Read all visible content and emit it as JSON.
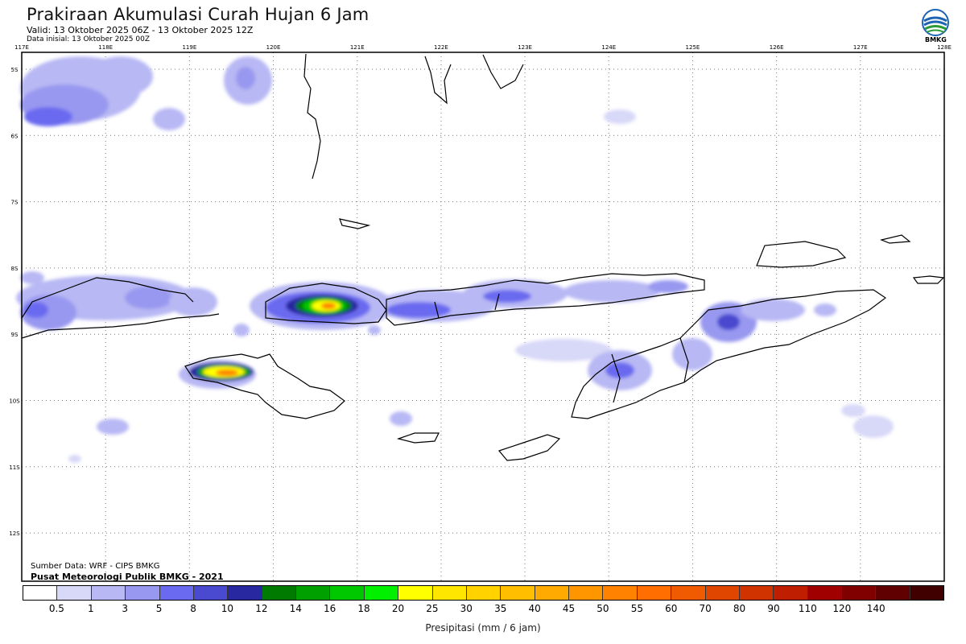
{
  "header": {
    "title": "Prakiraan Akumulasi Curah Hujan 6 Jam",
    "valid": "Valid: 13 Oktober 2025 06Z - 13 Oktober 2025 12Z",
    "init": "Data inisial: 13 Oktober 2025 00Z",
    "logo_icon": "bmkg-logo-icon",
    "logo_text": "BMKG"
  },
  "map": {
    "lon_labels": [
      "117E",
      "118E",
      "119E",
      "120E",
      "121E",
      "122E",
      "123E",
      "124E",
      "125E",
      "126E",
      "127E",
      "128E"
    ],
    "lat_labels": [
      "5S",
      "6S",
      "7S",
      "8S",
      "9S",
      "10S",
      "11S",
      "12S"
    ],
    "region": "Nusa Tenggara / Flores / Timor"
  },
  "credits": {
    "source": "Sumber Data: WRF - CIPS BMKG",
    "org": "Pusat Meteorologi Publik BMKG - 2021"
  },
  "legend": {
    "colors": [
      "#ffffff",
      "#d8d8f8",
      "#b8b8f4",
      "#9898f0",
      "#6a6af0",
      "#4a4ad0",
      "#2828a0",
      "#007a00",
      "#00a000",
      "#00c800",
      "#00f000",
      "#ffff00",
      "#ffe600",
      "#ffd200",
      "#ffbe00",
      "#ffaa00",
      "#ff9600",
      "#ff8200",
      "#ff6e00",
      "#f05a00",
      "#e04600",
      "#d03200",
      "#c01e00",
      "#a00000",
      "#800000",
      "#600000",
      "#400000"
    ],
    "labels": [
      "0.5",
      "1",
      "3",
      "5",
      "8",
      "10",
      "12",
      "14",
      "16",
      "18",
      "20",
      "25",
      "30",
      "35",
      "40",
      "45",
      "50",
      "55",
      "60",
      "70",
      "80",
      "90",
      "110",
      "120",
      "140"
    ],
    "axis_label": "Presipitasi (mm / 6 jam)"
  }
}
